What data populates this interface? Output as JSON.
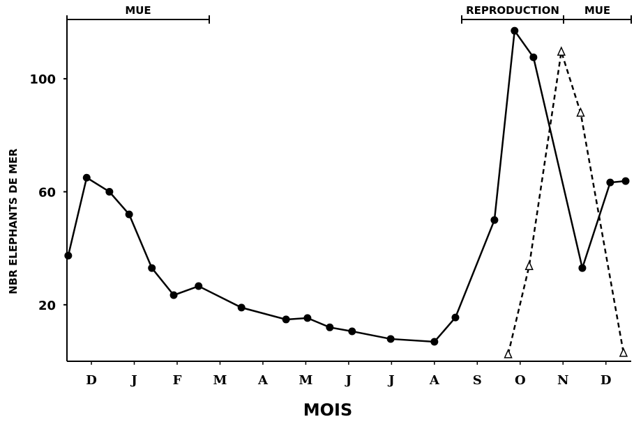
{
  "chart_data": {
    "type": "line",
    "x_label": "MOIS",
    "y_label": "NBR  ELEPHANTS  DE  MER",
    "annotations": [
      "MUE",
      "REPRODUCTION",
      "MUE"
    ],
    "xlim": [
      -0.57,
      12.59
    ],
    "ylim": [
      0,
      120
    ],
    "xticks": [
      {
        "value": 0,
        "label": "D"
      },
      {
        "value": 1,
        "label": "J"
      },
      {
        "value": 2,
        "label": "F"
      },
      {
        "value": 3,
        "label": "M"
      },
      {
        "value": 4,
        "label": "A"
      },
      {
        "value": 5,
        "label": "M"
      },
      {
        "value": 6,
        "label": "J"
      },
      {
        "value": 7,
        "label": "J"
      },
      {
        "value": 8,
        "label": "A"
      },
      {
        "value": 9,
        "label": "S"
      },
      {
        "value": 10,
        "label": "O"
      },
      {
        "value": 11,
        "label": "N"
      },
      {
        "value": 12,
        "label": "D"
      }
    ],
    "yticks": [
      20,
      60,
      100
    ],
    "series": [
      {
        "color": "#000000",
        "dashed": false,
        "marker": "circle",
        "x": [
          -0.54,
          -0.11,
          0.42,
          0.88,
          1.41,
          1.92,
          2.5,
          3.5,
          4.54,
          5.04,
          5.56,
          6.08,
          6.98,
          8.0,
          8.49,
          9.4,
          9.87,
          10.31,
          11.45,
          12.1,
          12.46
        ],
        "values": [
          37.4,
          65,
          60,
          52,
          33,
          23.4,
          26.6,
          19,
          14.8,
          15.3,
          12,
          10.6,
          7.9,
          6.9,
          15.5,
          50,
          117,
          107.6,
          33,
          63.3,
          63.8
        ]
      },
      {
        "color": "#000000",
        "dashed": true,
        "marker": "triangle",
        "x": [
          9.72,
          10.21,
          10.96,
          11.41,
          12.41
        ],
        "values": [
          2.5,
          33.7,
          109.6,
          88,
          3
        ]
      }
    ]
  }
}
